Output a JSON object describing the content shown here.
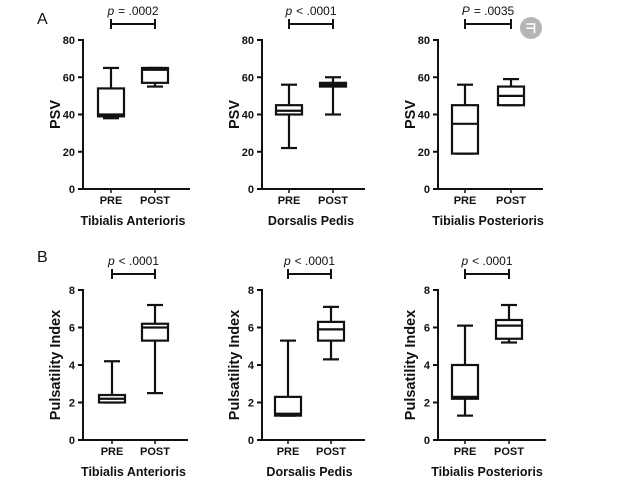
{
  "panel_labels": [
    "A",
    "B"
  ],
  "overlay": {
    "icon": "overlay-badge-icon",
    "color": "#b5b5b5"
  },
  "colors": {
    "stroke": "#111111",
    "background": "#ffffff",
    "box_fill": "#ffffff"
  },
  "chart_data": [
    {
      "type": "box",
      "categories": [
        "PRE",
        "POST"
      ],
      "boxes": [
        {
          "min": 38,
          "q1": 39,
          "median": 40,
          "q3": 54,
          "max": 65
        },
        {
          "min": 55,
          "q1": 57,
          "median": 64,
          "q3": 65,
          "max": 65
        }
      ],
      "ylabel": "PSV",
      "xlabel": "Tibialis Anterioris",
      "ylim": [
        0,
        80
      ],
      "yticks": [
        0,
        20,
        40,
        60,
        80
      ],
      "annotation": {
        "symbol": "p",
        "text": "= .0002"
      },
      "grid": false
    },
    {
      "type": "box",
      "categories": [
        "PRE",
        "POST"
      ],
      "boxes": [
        {
          "min": 22,
          "q1": 40,
          "median": 42,
          "q3": 45,
          "max": 56
        },
        {
          "min": 40,
          "q1": 55,
          "median": 56,
          "q3": 57,
          "max": 60
        }
      ],
      "ylabel": "PSV",
      "xlabel": "Dorsalis Pedis",
      "ylim": [
        0,
        80
      ],
      "yticks": [
        0,
        20,
        40,
        60,
        80
      ],
      "annotation": {
        "symbol": "p",
        "text": "< .0001"
      },
      "grid": false
    },
    {
      "type": "box",
      "categories": [
        "PRE",
        "POST"
      ],
      "boxes": [
        {
          "min": 19,
          "q1": 19,
          "median": 35,
          "q3": 45,
          "max": 56
        },
        {
          "min": 45,
          "q1": 45,
          "median": 50,
          "q3": 55,
          "max": 59
        }
      ],
      "ylabel": "PSV",
      "xlabel": "Tibialis Posterioris",
      "ylim": [
        0,
        80
      ],
      "yticks": [
        0,
        20,
        40,
        60,
        80
      ],
      "annotation": {
        "symbol": "P",
        "text": "= .0035"
      },
      "grid": false
    },
    {
      "type": "box",
      "categories": [
        "PRE",
        "POST"
      ],
      "boxes": [
        {
          "min": 2.0,
          "q1": 2.0,
          "median": 2.2,
          "q3": 2.4,
          "max": 4.2
        },
        {
          "min": 2.5,
          "q1": 5.3,
          "median": 6.0,
          "q3": 6.2,
          "max": 7.2
        }
      ],
      "ylabel": "Pulsatility Index",
      "xlabel": "Tibialis Anterioris",
      "ylim": [
        0,
        8
      ],
      "yticks": [
        0,
        2,
        4,
        6,
        8
      ],
      "annotation": {
        "symbol": "p",
        "text": "< .0001"
      },
      "grid": false
    },
    {
      "type": "box",
      "categories": [
        "PRE",
        "POST"
      ],
      "boxes": [
        {
          "min": 1.3,
          "q1": 1.3,
          "median": 1.4,
          "q3": 2.3,
          "max": 5.3
        },
        {
          "min": 4.3,
          "q1": 5.3,
          "median": 5.9,
          "q3": 6.3,
          "max": 7.1
        }
      ],
      "ylabel": "Pulsatility Index",
      "xlabel": "Dorsalis Pedis",
      "ylim": [
        0,
        8
      ],
      "yticks": [
        0,
        2,
        4,
        6,
        8
      ],
      "annotation": {
        "symbol": "p",
        "text": "< .0001"
      },
      "grid": false
    },
    {
      "type": "box",
      "categories": [
        "PRE",
        "POST"
      ],
      "boxes": [
        {
          "min": 1.3,
          "q1": 2.2,
          "median": 2.3,
          "q3": 4.0,
          "max": 6.1
        },
        {
          "min": 5.2,
          "q1": 5.4,
          "median": 6.1,
          "q3": 6.4,
          "max": 7.2
        }
      ],
      "ylabel": "Pulsatility Index",
      "xlabel": "Tibialis Posterioris",
      "ylim": [
        0,
        8
      ],
      "yticks": [
        0,
        2,
        4,
        6,
        8
      ],
      "annotation": {
        "symbol": "p",
        "text": "< .0001"
      },
      "grid": false
    }
  ]
}
